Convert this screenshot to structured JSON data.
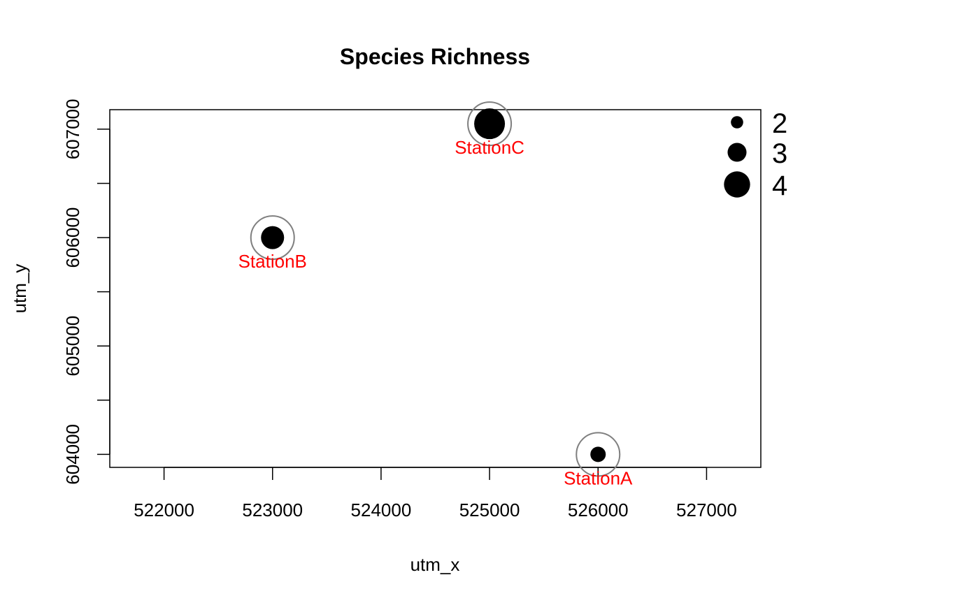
{
  "chart_data": {
    "type": "scatter",
    "title": "Species Richness",
    "xlabel": "utm_x",
    "ylabel": "utm_y",
    "xlim": [
      521500,
      527500
    ],
    "ylim": [
      603880,
      607180
    ],
    "x_ticks": [
      522000,
      523000,
      524000,
      525000,
      526000,
      527000
    ],
    "x_tick_labels": [
      "522000",
      "523000",
      "524000",
      "525000",
      "526000",
      "527000"
    ],
    "y_ticks": [
      604000,
      604500,
      605000,
      605500,
      606000,
      606500,
      607000
    ],
    "y_tick_labels": [
      "604000",
      "",
      "605000",
      "",
      "606000",
      "",
      "607000"
    ],
    "grid": false,
    "points": [
      {
        "label": "StationA",
        "x": 526000,
        "y": 604000,
        "value": 2
      },
      {
        "label": "StationB",
        "x": 523000,
        "y": 606000,
        "value": 3
      },
      {
        "label": "StationC",
        "x": 525000,
        "y": 607050,
        "value": 4
      }
    ],
    "legend": {
      "placement": "top-right",
      "entries": [
        {
          "label": "2",
          "value": 2
        },
        {
          "label": "3",
          "value": 3
        },
        {
          "label": "4",
          "value": 4
        }
      ]
    },
    "colors": {
      "point": "#000000",
      "ring": "#7f7f7f",
      "station_label": "#ff0000"
    }
  }
}
